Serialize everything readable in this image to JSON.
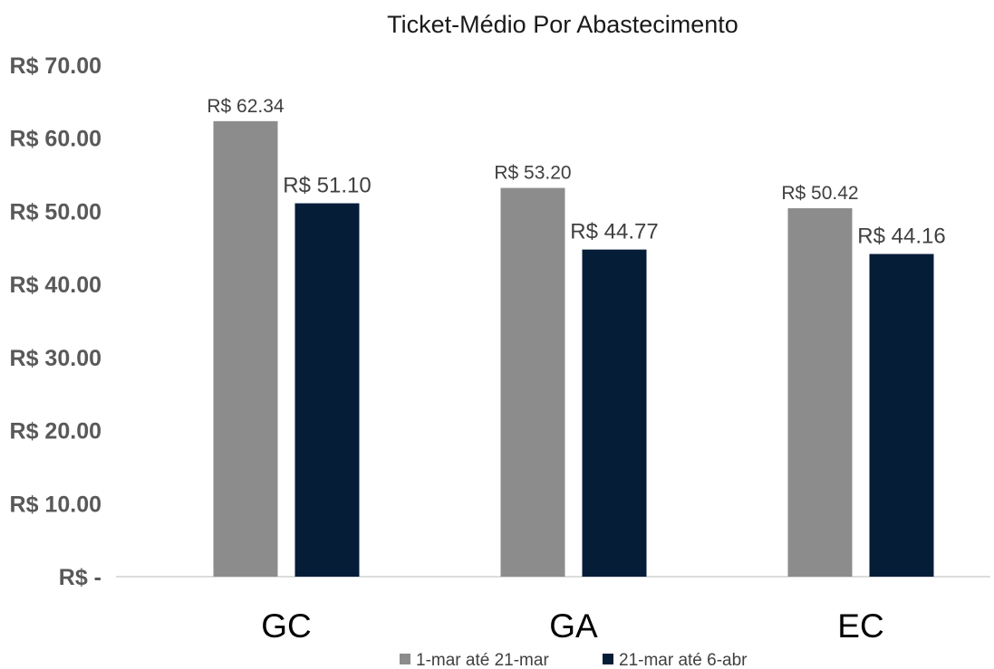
{
  "chart_data": {
    "type": "bar",
    "title": "Ticket-Médio Por Abastecimento",
    "xlabel": "",
    "ylabel": "",
    "categories": [
      "GC",
      "GA",
      "EC"
    ],
    "series": [
      {
        "name": "1-mar até 21-mar",
        "color": "#8c8c8c",
        "values": [
          62.34,
          53.2,
          50.42
        ],
        "labels": [
          "R$ 62.34",
          "R$ 53.20",
          "R$ 50.42"
        ]
      },
      {
        "name": "21-mar até 6-abr",
        "color": "#061d38",
        "values": [
          51.1,
          44.77,
          44.16
        ],
        "labels": [
          "R$ 51.10",
          "R$ 44.77",
          "R$ 44.16"
        ]
      }
    ],
    "ylim": [
      0,
      70
    ],
    "yticks": [
      0,
      10,
      20,
      30,
      40,
      50,
      60,
      70
    ],
    "ytick_labels": [
      "R$ -",
      "R$ 10.00",
      "R$ 20.00",
      "R$ 30.00",
      "R$ 40.00",
      "R$ 50.00",
      "R$ 60.00",
      "R$ 70.00"
    ],
    "grid": false,
    "legend_position": "bottom"
  }
}
